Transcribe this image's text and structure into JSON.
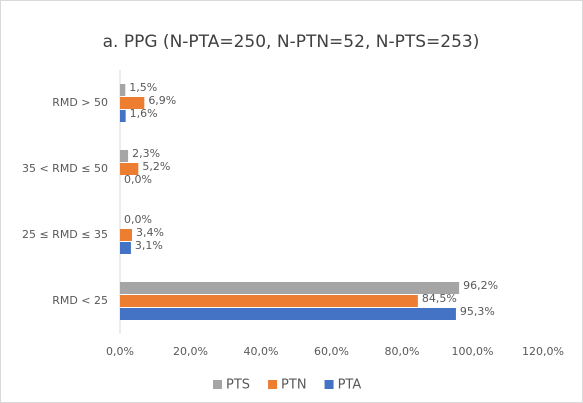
{
  "chart_data": {
    "type": "bar",
    "orientation": "horizontal",
    "title": "a. PPG (N-PTA=250, N-PTN=52, N-PTS=253)",
    "categories": [
      "RMD < 25",
      "25 ≤ RMD ≤ 35",
      "35 < RMD ≤ 50",
      "RMD > 50"
    ],
    "series": [
      {
        "name": "PTS",
        "color": "#a5a5a5",
        "values": [
          96.2,
          0,
          2.3,
          1.5
        ],
        "value_labels": [
          "96,2%",
          "0,0%",
          "2,3%",
          "1,5%"
        ]
      },
      {
        "name": "PTN",
        "color": "#ed7d31",
        "values": [
          84.5,
          3.4,
          5.2,
          6.9
        ],
        "value_labels": [
          "84,5%",
          "3,4%",
          "5,2%",
          "6,9%"
        ]
      },
      {
        "name": "PTA",
        "color": "#4472c4",
        "values": [
          95.3,
          3.1,
          0,
          1.6
        ],
        "value_labels": [
          "95,3%",
          "3,1%",
          "0,0%",
          "1,6%"
        ]
      }
    ],
    "xlim": [
      0,
      120
    ],
    "xticks": [
      {
        "value": 0,
        "label": "0,0%"
      },
      {
        "value": 20,
        "label": "20,0%"
      },
      {
        "value": 40,
        "label": "40,0%"
      },
      {
        "value": 60,
        "label": "60,0%"
      },
      {
        "value": 80,
        "label": "80,0%"
      },
      {
        "value": 100,
        "label": "100,0%"
      },
      {
        "value": 120,
        "label": "120,0%"
      }
    ],
    "grid": false,
    "legend": "bottom"
  }
}
